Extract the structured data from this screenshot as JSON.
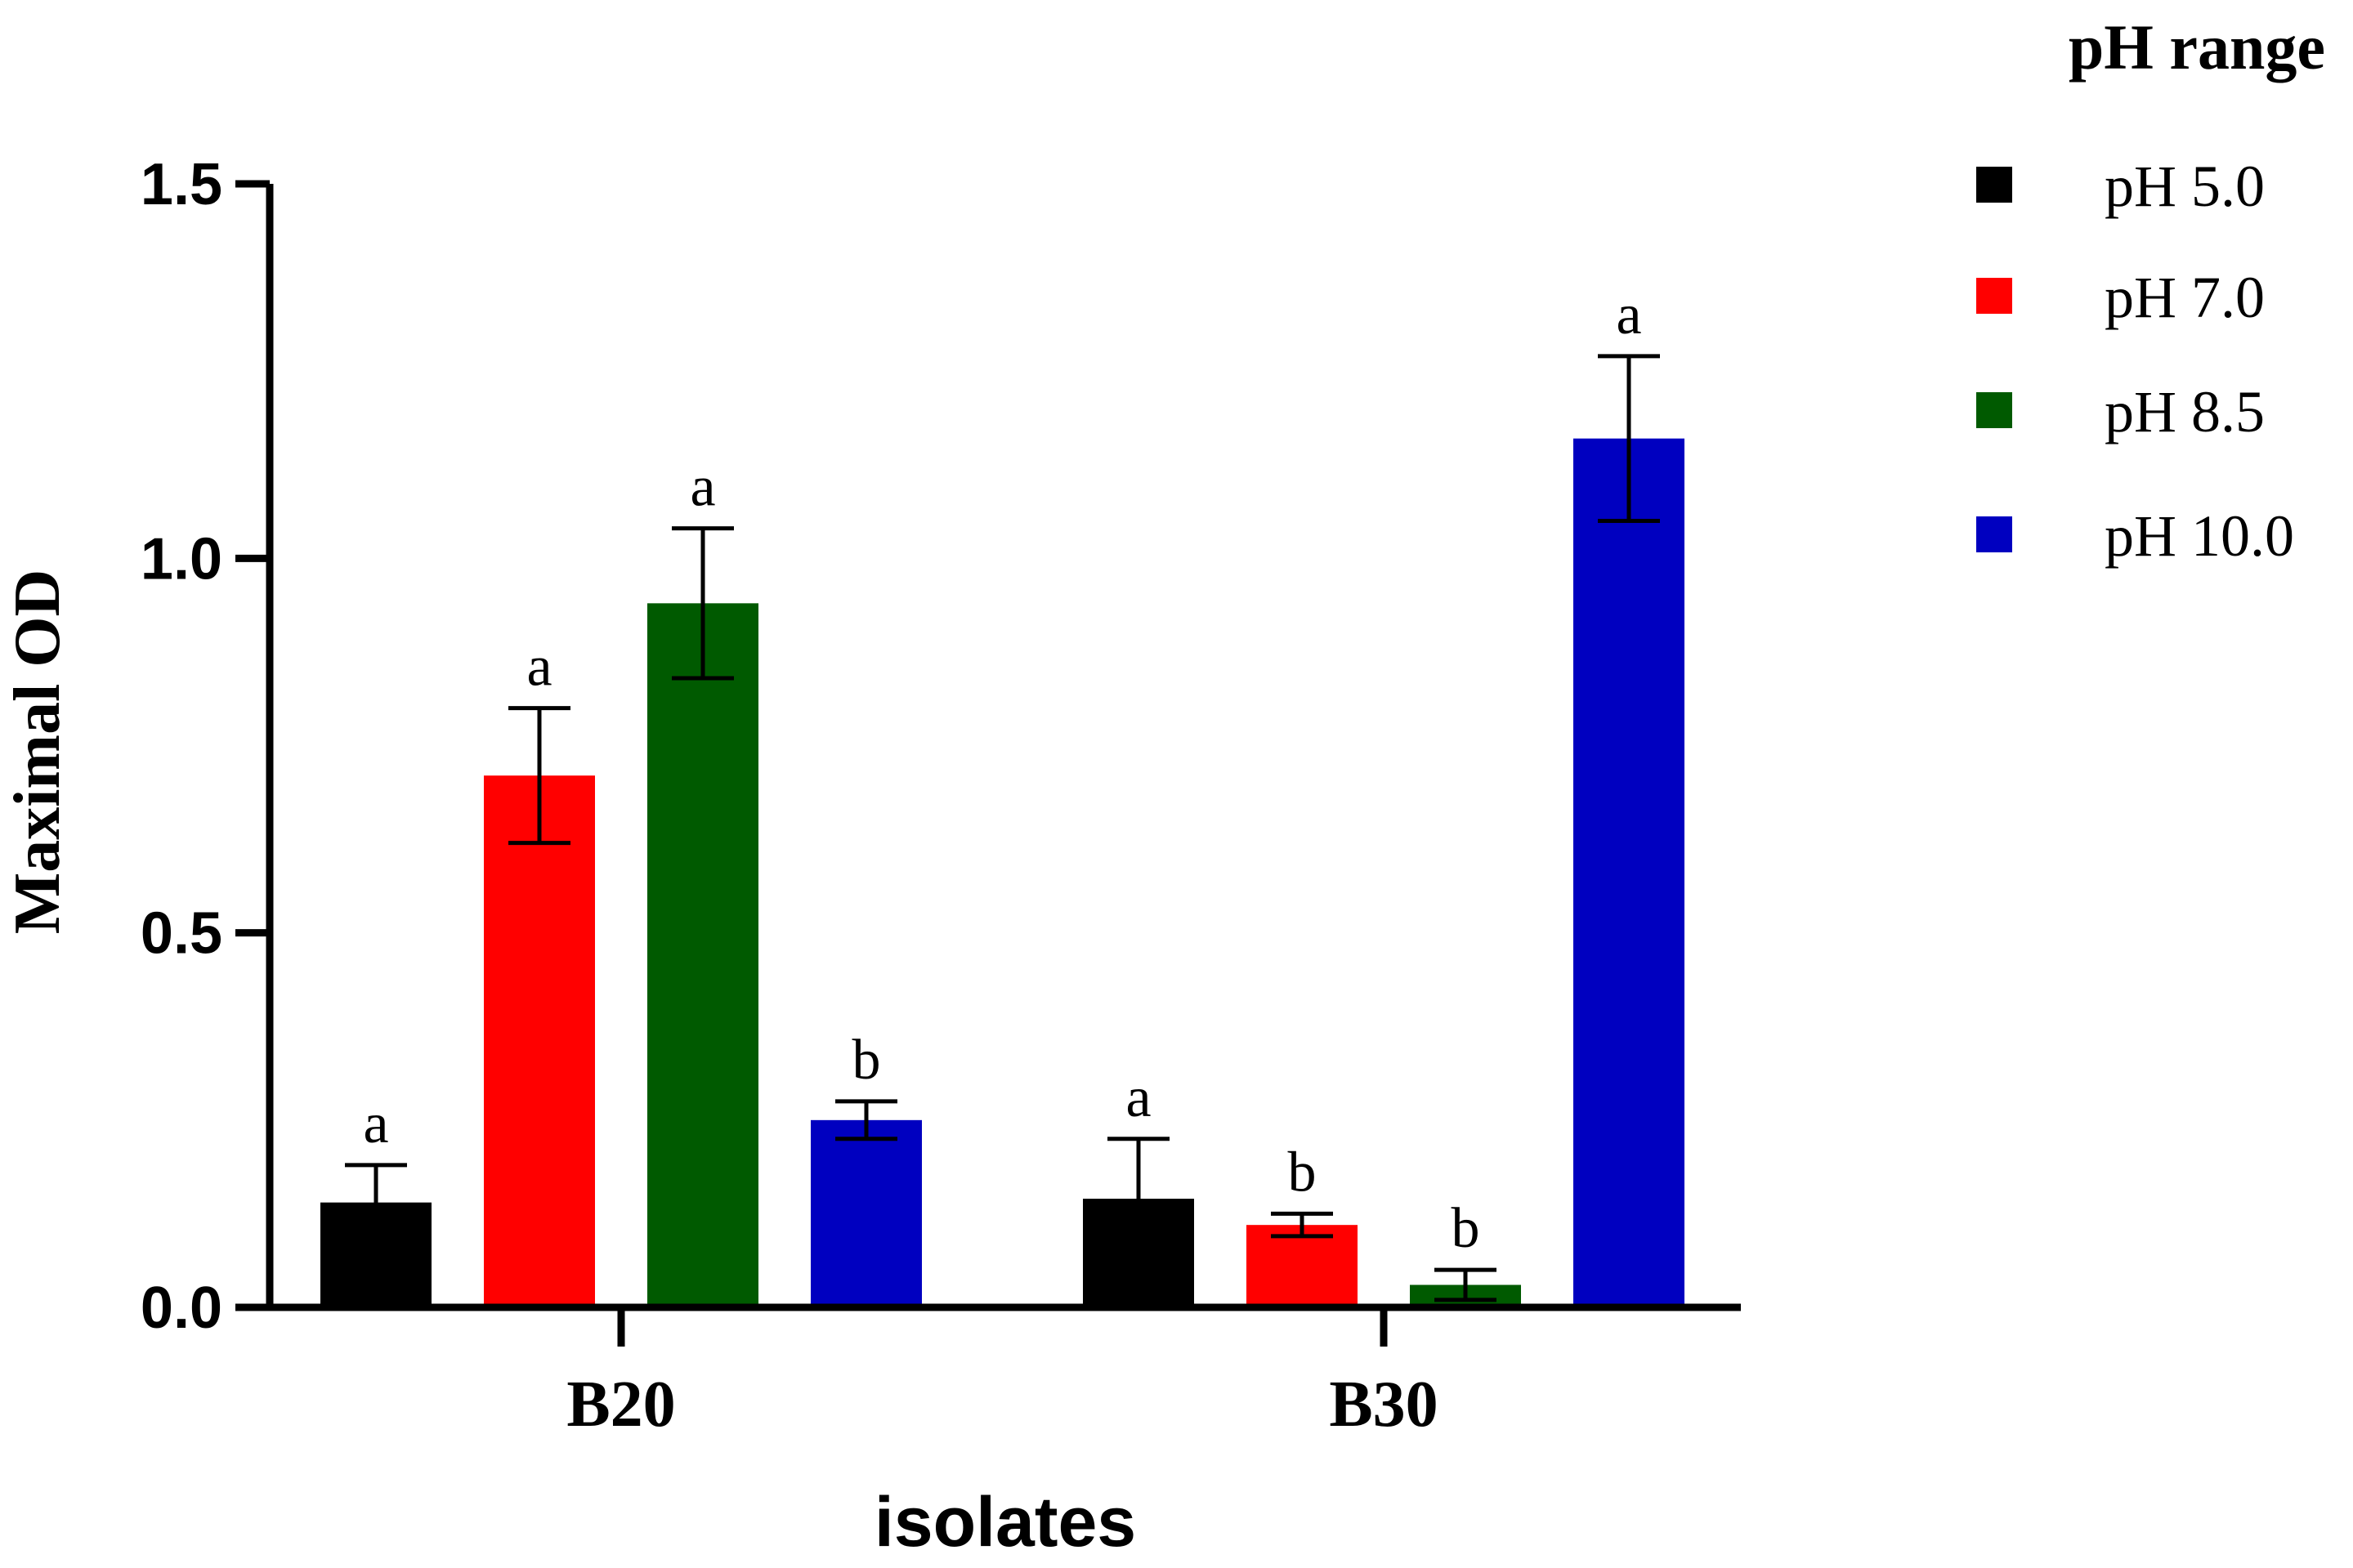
{
  "chart_data": {
    "type": "bar",
    "title": "",
    "xlabel": "isolates",
    "ylabel": "Maximal OD",
    "ylim": [
      0,
      1.5
    ],
    "yticks": [
      "0.0",
      "0.5",
      "1.0",
      "1.5"
    ],
    "categories": [
      "B20",
      "B30"
    ],
    "legend": {
      "title": "pH range",
      "placement": "top-right"
    },
    "series": [
      {
        "name": "pH 5.0",
        "color": "#000000",
        "values": [
          0.14,
          0.145
        ],
        "errors": [
          0.05,
          0.08
        ],
        "significance": [
          "a",
          "a"
        ]
      },
      {
        "name": "pH 7.0",
        "color": "#ff0000",
        "values": [
          0.71,
          0.11
        ],
        "errors": [
          0.09,
          0.015
        ],
        "significance": [
          "a",
          "b"
        ]
      },
      {
        "name": "pH 8.5",
        "color": "#005a00",
        "values": [
          0.94,
          0.03
        ],
        "errors": [
          0.1,
          0.02
        ],
        "significance": [
          "a",
          "b"
        ]
      },
      {
        "name": "pH 10.0",
        "color": "#0000c0",
        "values": [
          0.25,
          1.16
        ],
        "errors": [
          0.025,
          0.11
        ],
        "significance": [
          "b",
          "a"
        ]
      }
    ]
  }
}
